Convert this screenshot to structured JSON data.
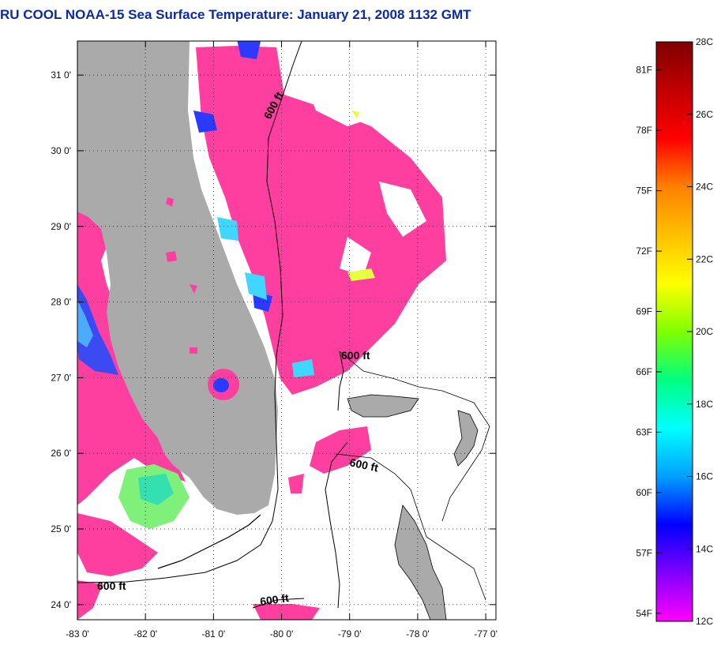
{
  "title": "RU COOL  NOAA-15  Sea Surface Temperature:  January 21, 2008 1132 GMT",
  "map": {
    "lat_ticks": [
      "31 0'",
      "30 0'",
      "29 0'",
      "28 0'",
      "27 0'",
      "26 0'",
      "25 0'",
      "24 0'"
    ],
    "lon_ticks": [
      "-83 0'",
      "-82 0'",
      "-81 0'",
      "-80 0'",
      "-79 0'",
      "-78 0'",
      "-77 0'"
    ],
    "lat_values": [
      31,
      30,
      29,
      28,
      27,
      26,
      25,
      24
    ],
    "lon_values": [
      -83,
      -82,
      -81,
      -80,
      -79,
      -78,
      -77
    ],
    "lat_range": [
      23.8,
      31.45
    ],
    "lon_range": [
      -83.0,
      -76.85
    ],
    "contour_labels": [
      "600 ft",
      "600 ft",
      "600 ft",
      "600 ft",
      "600 ft"
    ],
    "land_color": "#aaaaaa",
    "sst_dominant_color": "#ff3f9f",
    "grid": "dotted"
  },
  "colorbar": {
    "fahrenheit_labels": [
      "81F",
      "78F",
      "75F",
      "72F",
      "69F",
      "66F",
      "63F",
      "60F",
      "57F",
      "54F"
    ],
    "fahrenheit_values": [
      81,
      78,
      75,
      72,
      69,
      66,
      63,
      60,
      57,
      54
    ],
    "celsius_labels": [
      "28C",
      "26C",
      "24C",
      "22C",
      "20C",
      "18C",
      "16C",
      "14C",
      "12C"
    ],
    "celsius_values": [
      28,
      26,
      24,
      22,
      20,
      18,
      16,
      14,
      12
    ],
    "range_c": [
      12,
      28
    ],
    "colors": [
      "#ff00ff",
      "#8000ff",
      "#0000ff",
      "#00a0ff",
      "#00ffff",
      "#00ff80",
      "#80ff00",
      "#ffff00",
      "#ffc000",
      "#ff8000",
      "#ff0000",
      "#c00000",
      "#800000"
    ]
  }
}
